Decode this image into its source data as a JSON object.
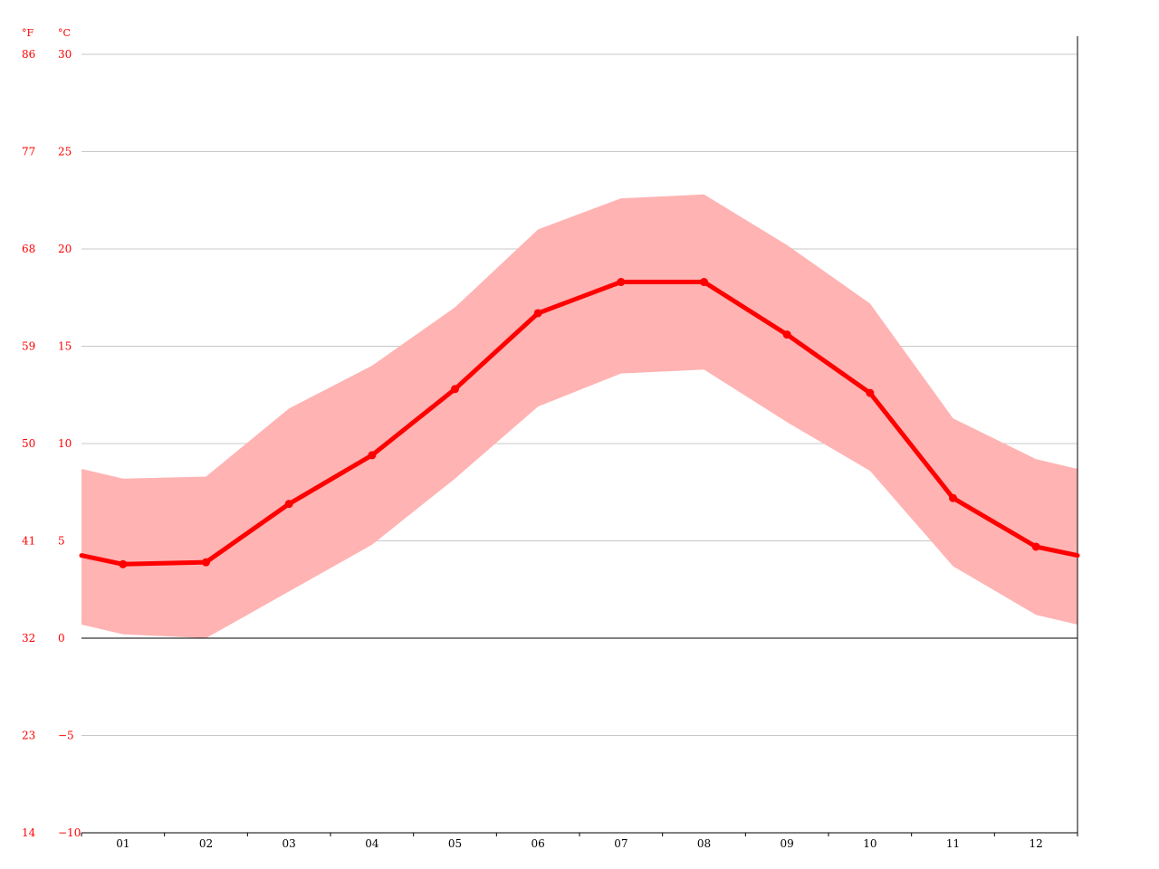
{
  "chart_data": {
    "type": "area",
    "title": "",
    "xlabel": "",
    "ylabel": "",
    "unit_left": "°F",
    "unit_right": "°C",
    "categories": [
      "01",
      "02",
      "03",
      "04",
      "05",
      "06",
      "07",
      "08",
      "09",
      "10",
      "11",
      "12"
    ],
    "ylim": [
      -10,
      30
    ],
    "yticks_c": [
      "30",
      "25",
      "20",
      "15",
      "10",
      "5",
      "0",
      "−5",
      "−10"
    ],
    "yticks_f": [
      "86",
      "77",
      "68",
      "59",
      "50",
      "41",
      "32",
      "23",
      "14"
    ],
    "ytick_values": [
      30,
      25,
      20,
      15,
      10,
      5,
      0,
      -5,
      -10
    ],
    "grid": true,
    "series": [
      {
        "role": "mean",
        "values": [
          3.8,
          3.9,
          6.9,
          9.4,
          12.8,
          16.7,
          18.3,
          18.3,
          15.6,
          12.6,
          7.2,
          4.7
        ]
      },
      {
        "role": "max",
        "values": [
          8.2,
          8.3,
          11.8,
          14.0,
          17.0,
          21.0,
          22.6,
          22.8,
          20.2,
          17.2,
          11.3,
          9.2
        ]
      },
      {
        "role": "min",
        "values": [
          0.2,
          0.0,
          2.4,
          4.8,
          8.2,
          11.9,
          13.6,
          13.8,
          11.1,
          8.6,
          3.7,
          1.2
        ]
      }
    ],
    "colors": {
      "mean_line": "#ff0000",
      "band_fill": "#ffb3b3",
      "tick_text": "#ff0000",
      "month_text": "#000000",
      "grid": "#c8c8c8",
      "axis": "#000000"
    }
  }
}
